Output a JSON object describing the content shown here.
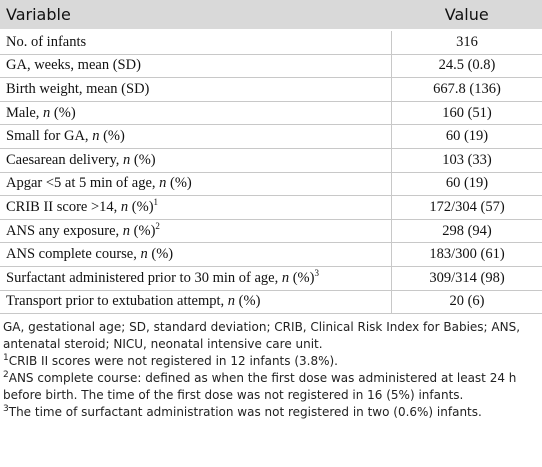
{
  "table": {
    "header": [
      "Variable",
      "Value"
    ],
    "rows": [
      {
        "label": "No. of infants",
        "value": "316"
      },
      {
        "label": "GA, weeks, mean (SD)",
        "value": "24.5 (0.8)"
      },
      {
        "label": "Birth weight, mean (SD)",
        "value": "667.8 (136)"
      },
      {
        "label": "Male,",
        "italic": "n",
        "after": "(%)",
        "value": "160 (51)"
      },
      {
        "label": "Small for GA,",
        "italic": "n",
        "after": "(%)",
        "value": "60 (19)"
      },
      {
        "label": "Caesarean delivery,",
        "italic": "n",
        "after": "(%)",
        "value": "103 (33)"
      },
      {
        "label": "Apgar <5 at 5 min of age,",
        "italic": "n",
        "after": "(%)",
        "value": "60 (19)"
      },
      {
        "label": "CRIB II score >14,",
        "italic": "n",
        "after": "(%)",
        "note": "1",
        "value": "172/304 (57)"
      },
      {
        "label": "ANS any exposure,",
        "italic": "n",
        "after": "(%)",
        "note": "2",
        "value": "298 (94)"
      },
      {
        "label": "ANS complete course,",
        "italic": "n",
        "after": "(%)",
        "value": "183/300 (61)"
      },
      {
        "label": "Surfactant administered prior to 30 min of age,",
        "italic": "n",
        "after": "(%)",
        "note": "3",
        "value": "309/314 (98)"
      },
      {
        "label": "Transport prior to extubation attempt,",
        "italic": "n",
        "after": "(%)",
        "value": "20 (6)"
      }
    ]
  },
  "footnotes": {
    "abbreviations": "GA, gestational age; SD, standard deviation; CRIB, Clinical Risk Index for Babies; ANS, antenatal steroid; NICU, neonatal intensive care unit.",
    "notes": [
      {
        "mark": "1",
        "text": "CRIB II scores were not registered in 12 infants (3.8%)."
      },
      {
        "mark": "2",
        "text": "ANS complete course: defined as when the first dose was administered at least 24 h before birth. The time of the first dose was not registered in 16 (5%) infants."
      },
      {
        "mark": "3",
        "text": "The time of surfactant administration was not registered in two (0.6%) infants."
      }
    ]
  }
}
